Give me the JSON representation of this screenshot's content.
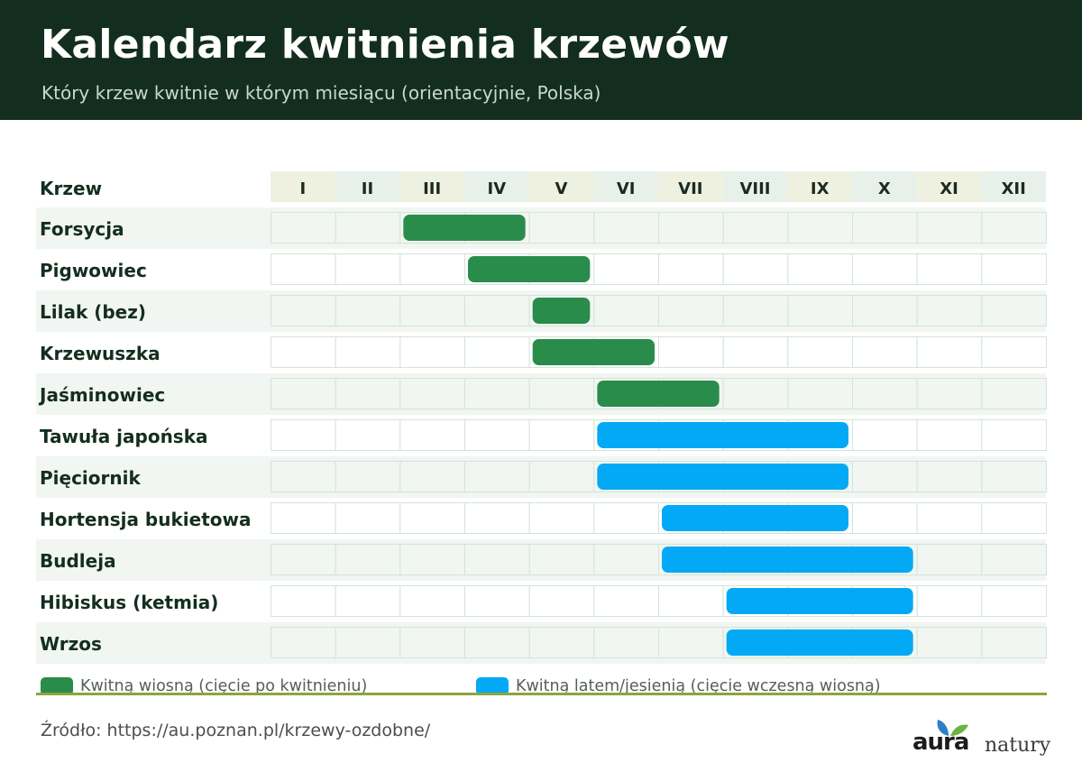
{
  "header": {
    "title": "Kalendarz kwitnienia krzewów",
    "subtitle": "Który krzew kwitnie w którym miesiącu (orientacyjnie, Polska)"
  },
  "chart_data": {
    "type": "gantt",
    "row_header": "Krzew",
    "months": [
      "I",
      "II",
      "III",
      "IV",
      "V",
      "VI",
      "VII",
      "VIII",
      "IX",
      "X",
      "XI",
      "XII"
    ],
    "rows": [
      {
        "name": "Forsycja",
        "start": 3,
        "end": 4,
        "group": "spring"
      },
      {
        "name": "Pigwowiec",
        "start": 4,
        "end": 5,
        "group": "spring"
      },
      {
        "name": "Lilak (bez)",
        "start": 5,
        "end": 5,
        "group": "spring"
      },
      {
        "name": "Krzewuszka",
        "start": 5,
        "end": 6,
        "group": "spring"
      },
      {
        "name": "Jaśminowiec",
        "start": 6,
        "end": 7,
        "group": "spring"
      },
      {
        "name": "Tawuła japońska",
        "start": 6,
        "end": 9,
        "group": "summer"
      },
      {
        "name": "Pięciornik",
        "start": 6,
        "end": 9,
        "group": "summer"
      },
      {
        "name": "Hortensja bukietowa",
        "start": 7,
        "end": 9,
        "group": "summer"
      },
      {
        "name": "Budleja",
        "start": 7,
        "end": 10,
        "group": "summer"
      },
      {
        "name": "Hibiskus (ketmia)",
        "start": 8,
        "end": 10,
        "group": "summer"
      },
      {
        "name": "Wrzos",
        "start": 8,
        "end": 10,
        "group": "summer"
      }
    ],
    "groups": {
      "spring": {
        "label": "Kwitną wiosną (cięcie po kwitnieniu)",
        "color": "#2a8c4a"
      },
      "summer": {
        "label": "Kwitną latem/jesienią (cięcie wczesną wiosną)",
        "color": "#03a9f4"
      }
    }
  },
  "legend": {
    "spring_label": "Kwitną wiosną (cięcie po kwitnieniu)",
    "summer_label": "Kwitną latem/jesienią (cięcie wczesną wiosną)"
  },
  "source": "Źródło: https://au.poznan.pl/krzewy-ozdobne/",
  "logo": {
    "brand": "aura",
    "suffix": "natury"
  },
  "colors": {
    "header_bg": "#132e1e",
    "spring": "#2a8c4a",
    "summer": "#03a9f4",
    "rule": "#8da53a"
  }
}
